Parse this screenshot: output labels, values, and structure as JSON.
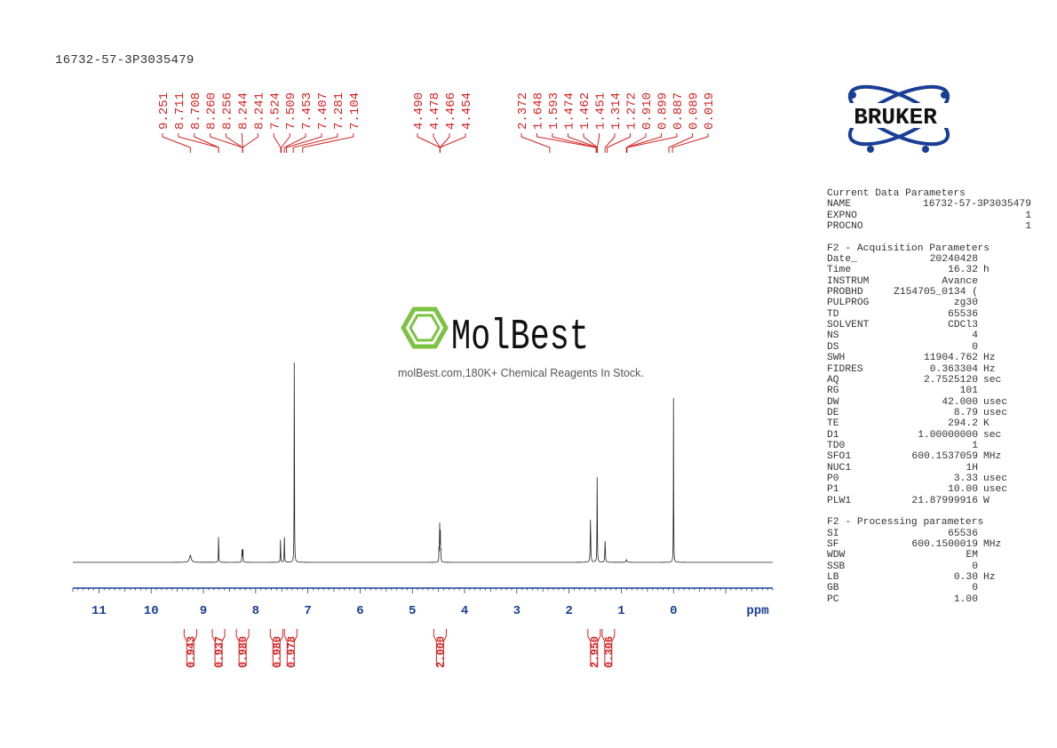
{
  "sample_name": "16732-57-3P3035479",
  "logo": {
    "text": "BRUKER",
    "color": "#1a3e96"
  },
  "watermark": {
    "brand": "MolBest",
    "tagline": "molBest.com,180K+ Chemical Reagents In Stock.",
    "color": "#7dc242"
  },
  "parameters": {
    "current": {
      "title": "Current Data Parameters",
      "rows": [
        [
          "NAME",
          "16732-57-3P3035479",
          ""
        ],
        [
          "EXPNO",
          "1",
          ""
        ],
        [
          "PROCNO",
          "1",
          ""
        ]
      ]
    },
    "acquisition": {
      "title": "F2 - Acquisition Parameters",
      "rows": [
        [
          "Date_",
          "20240428",
          ""
        ],
        [
          "Time",
          "16.32",
          "h"
        ],
        [
          "INSTRUM",
          "Avance",
          ""
        ],
        [
          "PROBHD",
          "Z154705_0134 (",
          ""
        ],
        [
          "PULPROG",
          "zg30",
          ""
        ],
        [
          "TD",
          "65536",
          ""
        ],
        [
          "SOLVENT",
          "CDCl3",
          ""
        ],
        [
          "NS",
          "4",
          ""
        ],
        [
          "DS",
          "0",
          ""
        ],
        [
          "SWH",
          "11904.762",
          "Hz"
        ],
        [
          "FIDRES",
          "0.363304",
          "Hz"
        ],
        [
          "AQ",
          "2.7525120",
          "sec"
        ],
        [
          "RG",
          "101",
          ""
        ],
        [
          "DW",
          "42.000",
          "usec"
        ],
        [
          "DE",
          "8.79",
          "usec"
        ],
        [
          "TE",
          "294.2",
          "K"
        ],
        [
          "D1",
          "1.00000000",
          "sec"
        ],
        [
          "TD0",
          "1",
          ""
        ],
        [
          "SFO1",
          "600.1537059",
          "MHz"
        ],
        [
          "NUC1",
          "1H",
          ""
        ],
        [
          "P0",
          "3.33",
          "usec"
        ],
        [
          "P1",
          "10.00",
          "usec"
        ],
        [
          "PLW1",
          "21.87999916",
          "W"
        ]
      ]
    },
    "processing": {
      "title": "F2 - Processing parameters",
      "rows": [
        [
          "SI",
          "65536",
          ""
        ],
        [
          "SF",
          "600.1500019",
          "MHz"
        ],
        [
          "WDW",
          "EM",
          ""
        ],
        [
          "SSB",
          "0",
          ""
        ],
        [
          "LB",
          "0.30",
          "Hz"
        ],
        [
          "GB",
          "0",
          ""
        ],
        [
          "PC",
          "1.00",
          ""
        ]
      ]
    }
  },
  "chart_data": {
    "type": "line",
    "xlabel": "ppm",
    "xlim": [
      11.5,
      -1.9
    ],
    "xticks": [
      11,
      10,
      9,
      8,
      7,
      6,
      5,
      4,
      3,
      2,
      1,
      0
    ],
    "label_color": "#d42020",
    "peak_label_groups": [
      {
        "labels": [
          "9.251",
          "8.711",
          "8.708",
          "8.260",
          "8.256",
          "8.244",
          "8.241",
          "7.524",
          "7.509",
          "7.453",
          "7.407",
          "7.281",
          "7.104"
        ],
        "targets": [
          9.25,
          8.71,
          8.71,
          8.25,
          8.25,
          8.25,
          8.25,
          7.52,
          7.51,
          7.45,
          7.41,
          7.28,
          7.1
        ]
      },
      {
        "labels": [
          "4.490",
          "4.478",
          "4.466",
          "4.454"
        ],
        "targets": [
          4.47,
          4.47,
          4.47,
          4.47
        ]
      },
      {
        "labels": [
          "2.372",
          "1.648",
          "1.593",
          "1.474",
          "1.462",
          "1.451",
          "1.314",
          "1.272",
          "0.910",
          "0.899",
          "0.887",
          "0.089",
          "0.019"
        ],
        "targets": [
          2.37,
          1.48,
          1.48,
          1.46,
          1.46,
          1.46,
          1.31,
          1.27,
          0.9,
          0.9,
          0.89,
          0.09,
          0.02
        ]
      }
    ],
    "integrals": [
      {
        "ppm": 9.25,
        "value": "0.943"
      },
      {
        "ppm": 8.71,
        "value": "0.937"
      },
      {
        "ppm": 8.25,
        "value": "0.980"
      },
      {
        "ppm": 7.52,
        "value": "0.980"
      },
      {
        "ppm": 7.41,
        "value": "0.978"
      },
      {
        "ppm": 4.47,
        "value": "2.000"
      },
      {
        "ppm": 1.46,
        "value": "2.950"
      },
      {
        "ppm": 1.31,
        "value": "0.306"
      }
    ],
    "peaks": [
      {
        "ppm": 9.25,
        "height": 8,
        "width": 0.02
      },
      {
        "ppm": 8.71,
        "height": 31,
        "width": 0.004
      },
      {
        "ppm": 8.26,
        "height": 14,
        "width": 0.004
      },
      {
        "ppm": 8.245,
        "height": 16,
        "width": 0.004
      },
      {
        "ppm": 7.524,
        "height": 27,
        "width": 0.004
      },
      {
        "ppm": 7.45,
        "height": 32,
        "width": 0.004
      },
      {
        "ppm": 7.26,
        "height": 280,
        "width": 0.003
      },
      {
        "ppm": 4.49,
        "height": 15,
        "width": 0.003
      },
      {
        "ppm": 4.478,
        "height": 46,
        "width": 0.003
      },
      {
        "ppm": 4.466,
        "height": 46,
        "width": 0.003
      },
      {
        "ppm": 4.454,
        "height": 15,
        "width": 0.003
      },
      {
        "ppm": 1.59,
        "height": 48,
        "width": 0.006
      },
      {
        "ppm": 1.462,
        "height": 99,
        "width": 0.004
      },
      {
        "ppm": 1.31,
        "height": 24,
        "width": 0.006
      },
      {
        "ppm": 0.9,
        "height": 3,
        "width": 0.01
      },
      {
        "ppm": 0.0,
        "height": 187,
        "width": 0.003
      }
    ]
  }
}
